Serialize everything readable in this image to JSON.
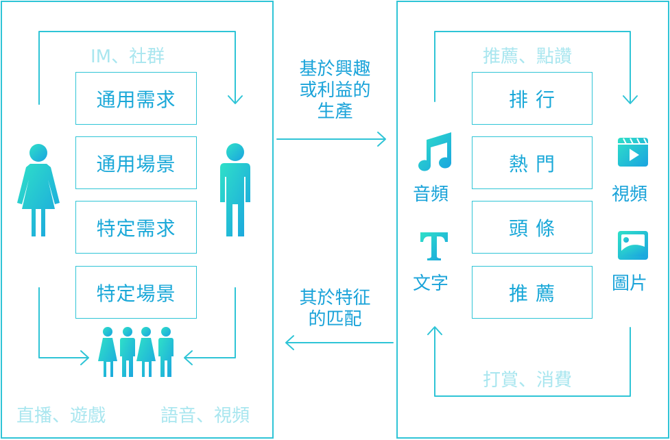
{
  "left": {
    "top_label": "IM、社群",
    "boxes": [
      "通用需求",
      "通用場景",
      "特定需求",
      "特定場景"
    ],
    "bottom_left_label": "直播、遊戲",
    "bottom_right_label": "語音、視頻"
  },
  "middle": {
    "top_text": [
      "基於興趣",
      "或利益的",
      "生產"
    ],
    "bottom_text": [
      "其於特征",
      "的匹配"
    ]
  },
  "right": {
    "top_label": "推薦、點讚",
    "boxes": [
      "排 行",
      "熱 門",
      "頭 條",
      "推 薦"
    ],
    "bottom_label": "打賞、消費",
    "icons": {
      "audio": "音頻",
      "text": "文字",
      "video": "視頻",
      "image": "圖片"
    }
  },
  "colors": {
    "accent": "#2ec4d6",
    "text": "#1aa3d9",
    "light": "#a9e6ef"
  },
  "icon_names": [
    "female-person-icon",
    "male-person-icon",
    "group-icon",
    "music-note-icon",
    "text-t-icon",
    "video-clapper-icon",
    "image-icon"
  ]
}
